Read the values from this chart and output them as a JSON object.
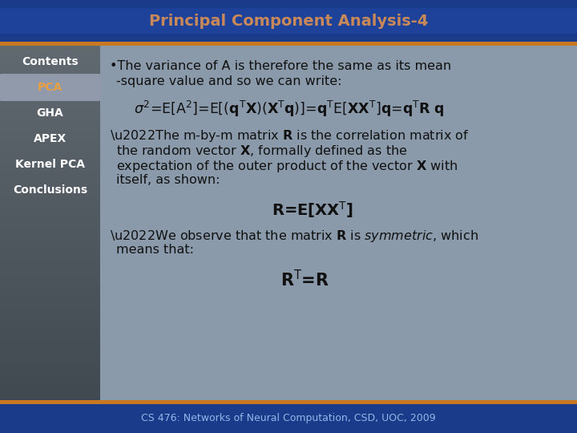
{
  "title": "Principal Component Analysis-4",
  "title_color": "#C8895A",
  "header_bg": "#1a3a8a",
  "accent_stripe": "#C87820",
  "body_bg": "#8a9aaa",
  "sidebar_bg_top": "#606870",
  "sidebar_bg_bottom": "#404850",
  "sidebar_active_bg": "#909aaa",
  "sidebar_items": [
    "Contents",
    "PCA",
    "GHA",
    "APEX",
    "Kernel PCA",
    "Conclusions"
  ],
  "sidebar_active": "PCA",
  "sidebar_active_color": "#E8A040",
  "sidebar_text_color": "#ffffff",
  "footer_text": "CS 476: Networks of Neural Computation, CSD, UOC, 2009",
  "footer_text_color": "#90b8e8",
  "footer_bg": "#1a3a8a",
  "content_text_color": "#111111",
  "figsize": [
    7.2,
    5.4
  ],
  "dpi": 100
}
